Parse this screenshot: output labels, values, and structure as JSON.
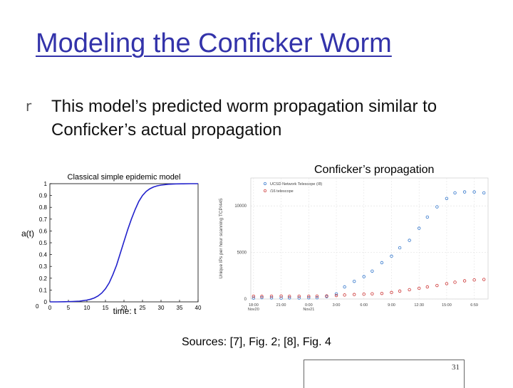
{
  "slide": {
    "title": "Modeling the Conficker Worm",
    "bullet_marker": "r",
    "bullet_text": "This model’s predicted worm propagation similar to Conficker’s actual propagation",
    "caption_right": "Conficker’s propagation",
    "sources": "Sources: [7], Fig. 2; [8], Fig. 4",
    "page_number": "31"
  },
  "chart_data": [
    {
      "type": "line",
      "title": "Classical simple epidemic model",
      "xlabel": "time: t",
      "ylabel": "a(t)",
      "xlim": [
        0,
        40
      ],
      "ylim": [
        0,
        1
      ],
      "x_ticks": [
        "0",
        "5",
        "10",
        "15",
        "20",
        "25",
        "30",
        "35",
        "40"
      ],
      "y_ticks": [
        "0",
        "0.1",
        "0.2",
        "0.3",
        "0.4",
        "0.5",
        "0.6",
        "0.7",
        "0.8",
        "0.9",
        "1"
      ],
      "grid": false,
      "series": [
        {
          "color": "#2222cc",
          "x": [
            0,
            2,
            4,
            6,
            8,
            10,
            11,
            12,
            13,
            14,
            15,
            16,
            17,
            18,
            19,
            20,
            21,
            22,
            23,
            24,
            25,
            26,
            27,
            28,
            29,
            30,
            32,
            34,
            36,
            38,
            40
          ],
          "y": [
            0.0,
            0.0,
            0.001,
            0.003,
            0.006,
            0.015,
            0.022,
            0.033,
            0.05,
            0.075,
            0.11,
            0.16,
            0.23,
            0.31,
            0.41,
            0.51,
            0.61,
            0.7,
            0.78,
            0.85,
            0.9,
            0.935,
            0.957,
            0.972,
            0.982,
            0.988,
            0.995,
            0.998,
            0.999,
            1.0,
            1.0
          ]
        }
      ]
    },
    {
      "type": "scatter",
      "ylabel": "Unique IPs per hour scanning TCP/445",
      "x_ticks": [
        "18:00\nNov20",
        "21:00",
        "0:00\nNov21",
        "3:00",
        "6:00",
        "9:00",
        "12:30",
        "15:00",
        "6:59"
      ],
      "y_ticks": [
        "0",
        "5000",
        "10000"
      ],
      "ylim": [
        0,
        13000
      ],
      "grid": true,
      "legend_position": "top-left",
      "series": [
        {
          "name": "UCSD Network Telescope (/8)",
          "color": "#3377cc",
          "x": [
            0.1,
            0.4,
            0.75,
            1.1,
            1.4,
            1.75,
            2.1,
            2.4,
            2.75,
            3.1,
            3.4,
            3.75,
            4.1,
            4.4,
            4.75,
            5.1,
            5.4,
            5.75,
            6.1,
            6.4,
            6.75,
            7.1,
            7.4,
            7.75,
            8.1,
            8.45
          ],
          "y": [
            100,
            150,
            120,
            100,
            120,
            110,
            130,
            140,
            260,
            550,
            1300,
            1900,
            2400,
            3000,
            3900,
            4600,
            5500,
            6300,
            7600,
            8800,
            9900,
            10800,
            11400,
            11500,
            11500,
            11400
          ]
        },
        {
          "name": "/16 telescope",
          "color": "#cc3333",
          "x": [
            0.1,
            0.4,
            0.75,
            1.1,
            1.4,
            1.75,
            2.1,
            2.4,
            2.75,
            3.1,
            3.4,
            3.75,
            4.1,
            4.4,
            4.75,
            5.1,
            5.4,
            5.75,
            6.1,
            6.4,
            6.75,
            7.1,
            7.4,
            7.75,
            8.1,
            8.45
          ],
          "y": [
            300,
            280,
            300,
            320,
            290,
            300,
            300,
            310,
            330,
            380,
            430,
            480,
            520,
            560,
            600,
            700,
            850,
            1000,
            1150,
            1300,
            1450,
            1650,
            1800,
            1950,
            2050,
            2100
          ]
        }
      ]
    }
  ]
}
